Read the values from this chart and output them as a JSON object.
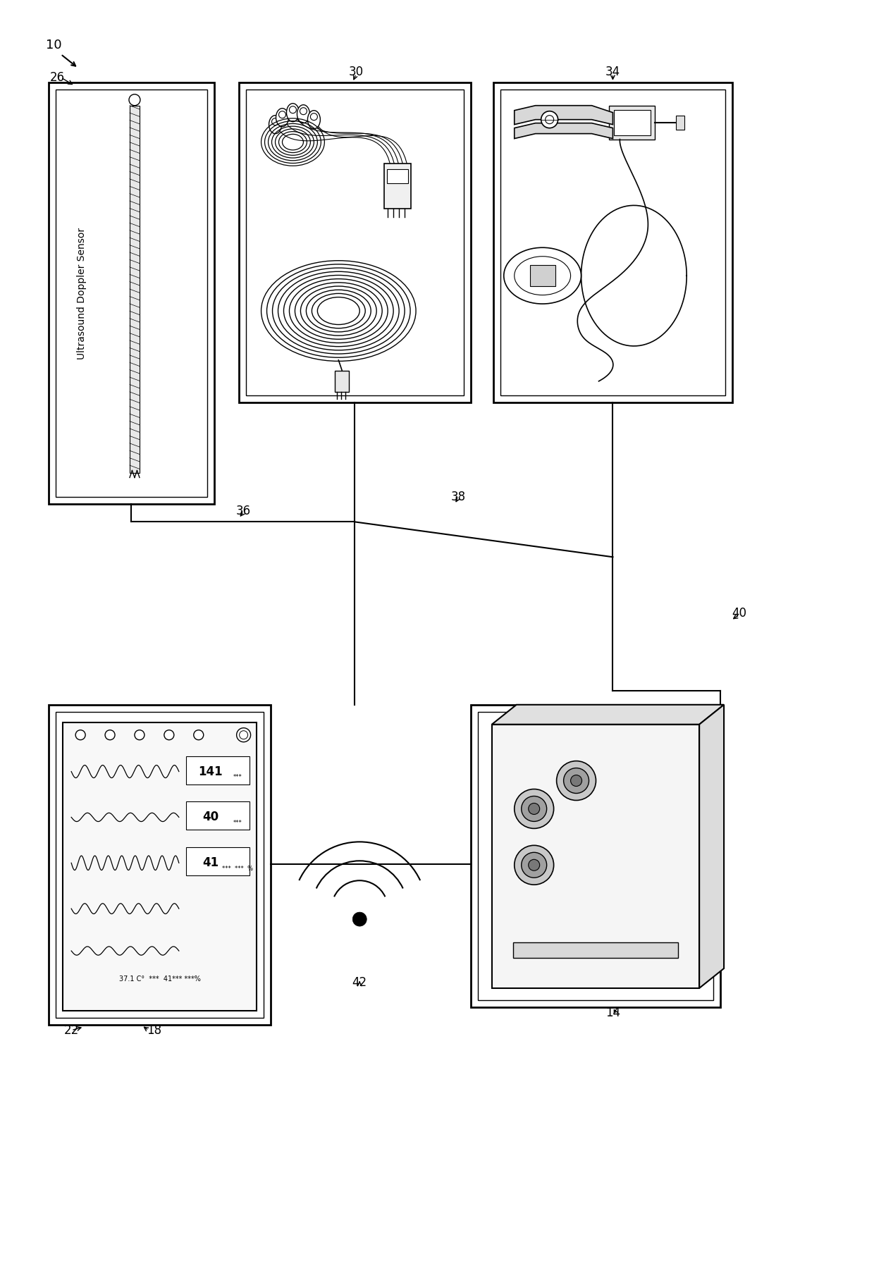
{
  "background_color": "#ffffff",
  "fig_width": 12.4,
  "fig_height": 18.16,
  "dpi": 100
}
